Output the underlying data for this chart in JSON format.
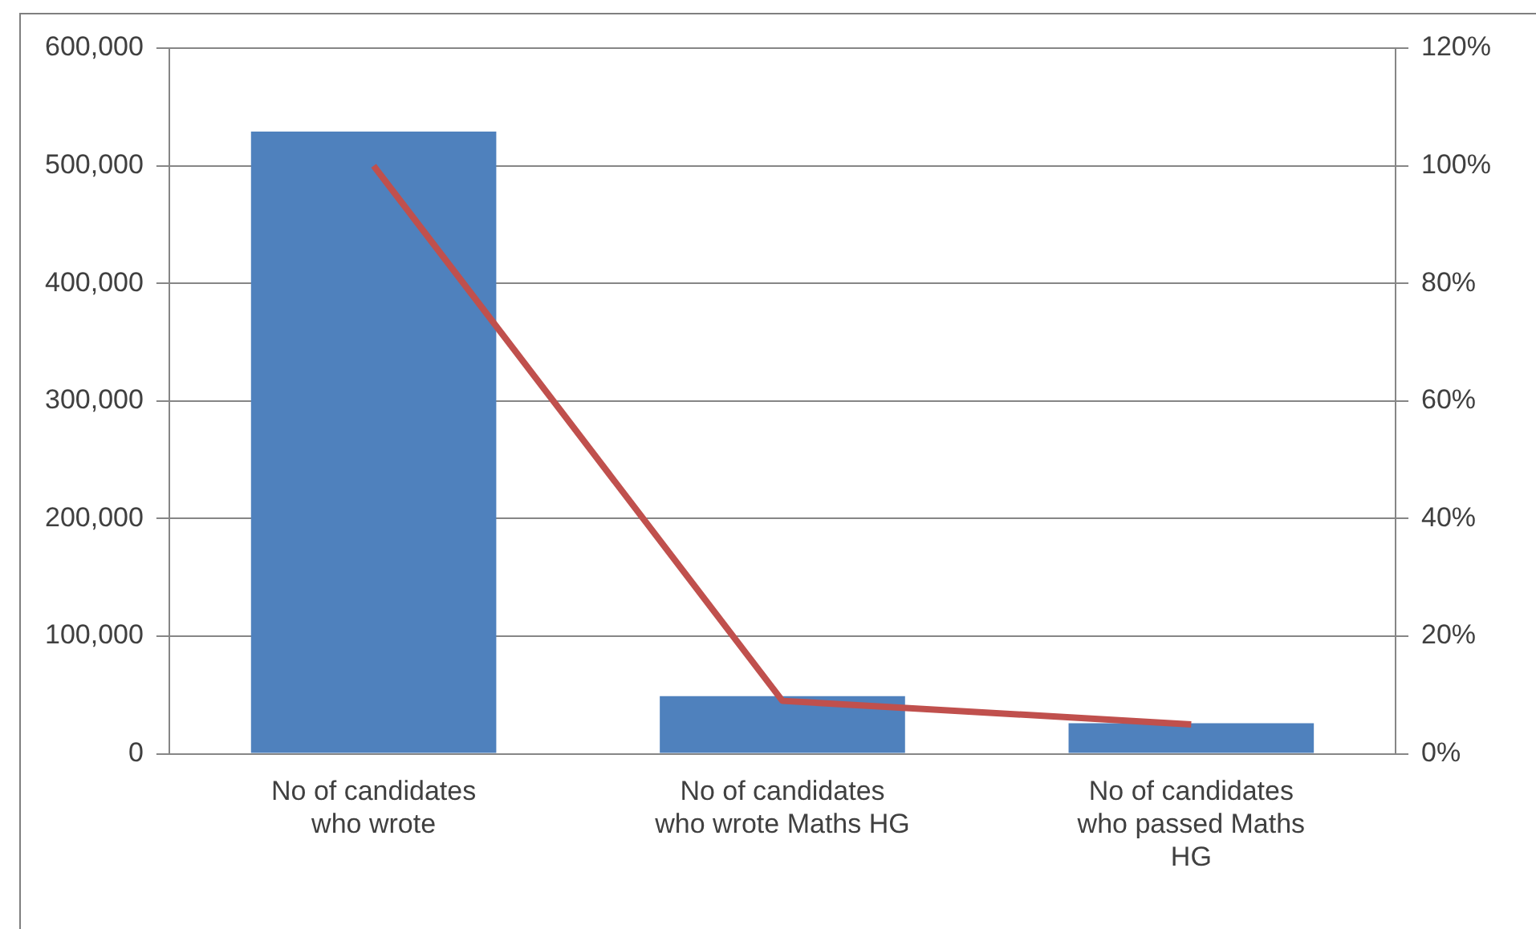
{
  "chart_data": {
    "type": "bar",
    "categories": [
      "No of candidates who wrote",
      "No of candidates who wrote Maths HG",
      "No of candidates who passed Maths HG"
    ],
    "series": [
      {
        "color": "#4f81bd",
        "values": [
          529000,
          49000,
          26000
        ]
      },
      {
        "type": "line",
        "axis": "y2",
        "color": "#c0504d",
        "values": [
          100,
          9,
          5
        ]
      }
    ],
    "ylim": [
      0,
      600000
    ],
    "yticks": [
      {
        "value": 0,
        "label": "0"
      },
      {
        "value": 100000,
        "label": "100,000"
      },
      {
        "value": 200000,
        "label": "200,000"
      },
      {
        "value": 300000,
        "label": "300,000"
      },
      {
        "value": 400000,
        "label": "400,000"
      },
      {
        "value": 500000,
        "label": "500,000"
      },
      {
        "value": 600000,
        "label": "600,000"
      }
    ],
    "y2lim": [
      0,
      120
    ],
    "y2ticks": [
      {
        "value": 0,
        "label": "0%"
      },
      {
        "value": 20,
        "label": "20%"
      },
      {
        "value": 40,
        "label": "40%"
      },
      {
        "value": 60,
        "label": "60%"
      },
      {
        "value": 80,
        "label": "80%"
      },
      {
        "value": 100,
        "label": "100%"
      },
      {
        "value": 120,
        "label": "120%"
      }
    ],
    "grid": "y",
    "legend": false,
    "marker": "none"
  }
}
